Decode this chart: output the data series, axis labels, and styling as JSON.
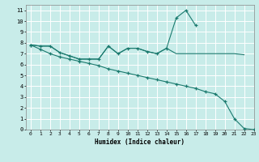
{
  "xlabel": "Humidex (Indice chaleur)",
  "background_color": "#c8ece9",
  "grid_color": "#ffffff",
  "line_color": "#1a7a6e",
  "xlim": [
    -0.5,
    23
  ],
  "ylim": [
    0,
    11.5
  ],
  "xticks": [
    0,
    1,
    2,
    3,
    4,
    5,
    6,
    7,
    8,
    9,
    10,
    11,
    12,
    13,
    14,
    15,
    16,
    17,
    18,
    19,
    20,
    21,
    22,
    23
  ],
  "yticks": [
    0,
    1,
    2,
    3,
    4,
    5,
    6,
    7,
    8,
    9,
    10,
    11
  ],
  "series": [
    {
      "x": [
        0,
        1,
        2,
        3,
        4,
        5,
        6,
        7,
        8,
        9,
        10,
        11,
        12,
        13,
        14,
        15,
        16,
        17,
        18,
        19,
        20,
        21,
        22
      ],
      "y": [
        7.8,
        7.7,
        7.7,
        7.1,
        6.8,
        6.5,
        6.5,
        6.5,
        7.7,
        7.0,
        7.5,
        7.5,
        7.2,
        7.0,
        7.5,
        7.0,
        7.0,
        7.0,
        7.0,
        7.0,
        7.0,
        7.0,
        6.9
      ],
      "marker": false
    },
    {
      "x": [
        0,
        1,
        2,
        3,
        4,
        5,
        6,
        7,
        8,
        9,
        10,
        11,
        12,
        13,
        14,
        15,
        16,
        17
      ],
      "y": [
        7.8,
        7.7,
        7.7,
        7.1,
        6.8,
        6.5,
        6.5,
        6.5,
        7.7,
        7.0,
        7.5,
        7.5,
        7.2,
        7.0,
        7.5,
        10.3,
        11.0,
        9.6
      ],
      "marker": true
    },
    {
      "x": [
        0,
        1,
        2,
        3,
        4,
        5,
        6,
        7,
        8,
        9,
        10,
        11,
        12,
        13,
        14,
        15,
        16,
        17,
        18,
        19,
        20,
        21,
        22,
        23
      ],
      "y": [
        7.8,
        7.4,
        7.0,
        6.7,
        6.5,
        6.3,
        6.1,
        5.9,
        5.6,
        5.4,
        5.2,
        5.0,
        4.8,
        4.6,
        4.4,
        4.2,
        4.0,
        3.8,
        3.5,
        3.3,
        2.6,
        1.0,
        0.1,
        0.0
      ],
      "marker": true
    }
  ]
}
